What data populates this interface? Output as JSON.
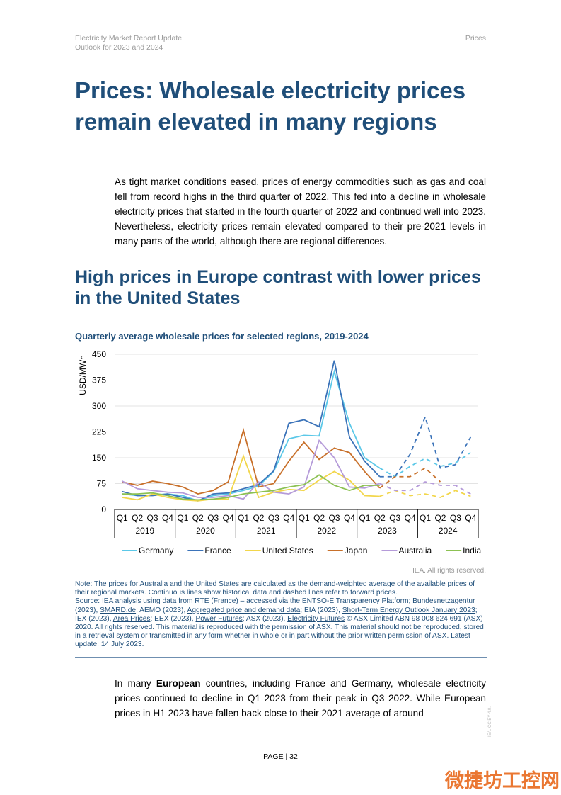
{
  "header": {
    "left": [
      "Electricity Market Report Update",
      "Outlook for 2023 and 2024"
    ],
    "right": "Prices"
  },
  "title": "Prices: Wholesale electricity prices remain elevated in many regions",
  "intro": "As tight market conditions eased, prices of energy commodities such as gas and coal fell from record highs in the third quarter of 2022. This fed into a decline in wholesale electricity prices that started in the fourth quarter of 2022 and continued well into 2023. Nevertheless, electricity prices remain elevated compared to their pre-2021 levels in many parts of the world, although there are regional differences.",
  "section_title": "High prices in Europe contrast with lower prices in the United States",
  "chart_data": {
    "type": "line",
    "title": "Quarterly average wholesale prices for selected regions, 2019-2024",
    "y_label": "USD/MWh",
    "categories": [
      "Q1",
      "Q2",
      "Q3",
      "Q4",
      "Q1",
      "Q2",
      "Q3",
      "Q4",
      "Q1",
      "Q2",
      "Q3",
      "Q4",
      "Q1",
      "Q2",
      "Q3",
      "Q4",
      "Q1",
      "Q2",
      "Q3",
      "Q4",
      "Q1",
      "Q2",
      "Q3",
      "Q4"
    ],
    "year_groups": [
      "2019",
      "2020",
      "2021",
      "2022",
      "2023",
      "2024"
    ],
    "ylim": [
      0,
      450
    ],
    "yticks": [
      0,
      75,
      150,
      225,
      300,
      375,
      450
    ],
    "grid": true,
    "legend": "bottom",
    "forecast_style": "dashed",
    "series": [
      {
        "name": "Germany",
        "color": "#5bc8e8",
        "values": [
          45,
          40,
          42,
          45,
          40,
          25,
          40,
          45,
          55,
          68,
          110,
          205,
          215,
          213,
          400,
          250,
          150,
          120,
          null,
          null,
          null,
          null,
          null,
          null
        ],
        "forecast_values": [
          null,
          null,
          null,
          null,
          null,
          null,
          null,
          null,
          null,
          null,
          null,
          null,
          null,
          null,
          null,
          null,
          null,
          120,
          95,
          125,
          148,
          125,
          135,
          165
        ]
      },
      {
        "name": "France",
        "color": "#3b73b9",
        "values": [
          52,
          40,
          40,
          45,
          35,
          25,
          45,
          48,
          60,
          72,
          112,
          250,
          260,
          240,
          432,
          210,
          140,
          95,
          null,
          null,
          null,
          null,
          null,
          null
        ],
        "forecast_values": [
          null,
          null,
          null,
          null,
          null,
          null,
          null,
          null,
          null,
          null,
          null,
          null,
          null,
          null,
          null,
          null,
          null,
          95,
          95,
          160,
          268,
          120,
          130,
          210
        ]
      },
      {
        "name": "United States",
        "color": "#f2d64b",
        "values": [
          35,
          28,
          45,
          35,
          28,
          25,
          30,
          30,
          155,
          35,
          50,
          58,
          55,
          85,
          110,
          85,
          40,
          38,
          null,
          null,
          null,
          null,
          null,
          null
        ],
        "forecast_values": [
          null,
          null,
          null,
          null,
          null,
          null,
          null,
          null,
          null,
          null,
          null,
          null,
          null,
          null,
          null,
          null,
          null,
          38,
          55,
          40,
          45,
          35,
          55,
          38
        ]
      },
      {
        "name": "Japan",
        "color": "#c8702a",
        "values": [
          80,
          70,
          82,
          75,
          65,
          45,
          55,
          80,
          230,
          65,
          75,
          140,
          195,
          145,
          178,
          165,
          110,
          62,
          null,
          null,
          null,
          null,
          null,
          null
        ],
        "forecast_values": [
          null,
          null,
          null,
          null,
          null,
          null,
          null,
          null,
          null,
          null,
          null,
          null,
          null,
          null,
          null,
          null,
          null,
          62,
          95,
          95,
          120,
          80,
          null,
          null
        ]
      },
      {
        "name": "Australia",
        "color": "#b59bd9",
        "values": [
          82,
          60,
          55,
          50,
          48,
          35,
          35,
          40,
          30,
          80,
          50,
          45,
          65,
          200,
          150,
          65,
          62,
          75,
          null,
          null,
          null,
          null,
          null,
          null
        ],
        "forecast_values": [
          null,
          null,
          null,
          null,
          null,
          null,
          null,
          null,
          null,
          null,
          null,
          null,
          null,
          null,
          null,
          null,
          null,
          75,
          55,
          55,
          80,
          70,
          70,
          45
        ]
      },
      {
        "name": "India",
        "color": "#8cc152",
        "values": [
          45,
          45,
          48,
          40,
          30,
          28,
          30,
          35,
          45,
          50,
          55,
          65,
          72,
          100,
          70,
          55,
          70,
          70,
          null,
          null,
          null,
          null,
          null,
          null
        ],
        "forecast_values": [
          null,
          null,
          null,
          null,
          null,
          null,
          null,
          null,
          null,
          null,
          null,
          null,
          null,
          null,
          null,
          null,
          null,
          null,
          null,
          null,
          null,
          null,
          null,
          null
        ]
      }
    ],
    "credit": "IEA. All rights reserved."
  },
  "note": "Note: The prices for Australia and the United States are calculated as the demand-weighted average of the available prices of their regional markets. Continuous lines show historical data and dashed lines refer to forward prices.",
  "source": [
    {
      "text": "Source: IEA analysis using data from RTE (France) – accessed via the ENTSO-E Transparency Platform; Bundesnetzagentur (2023), ",
      "link": false
    },
    {
      "text": "SMARD.de",
      "link": true
    },
    {
      "text": "; AEMO (2023), ",
      "link": false
    },
    {
      "text": "Aggregated price and demand data",
      "link": true
    },
    {
      "text": "; EIA (2023), ",
      "link": false
    },
    {
      "text": "Short-Term Energy Outlook January 2023",
      "link": true
    },
    {
      "text": "; IEX (2023), ",
      "link": false
    },
    {
      "text": "Area Prices",
      "link": true
    },
    {
      "text": "; EEX (2023), ",
      "link": false
    },
    {
      "text": "Power Futures",
      "link": true
    },
    {
      "text": "; ASX (2023), ",
      "link": false
    },
    {
      "text": "Electricity Futures",
      "link": true
    },
    {
      "text": " © ASX Limited ABN 98 008 624 691 (ASX) 2020. All rights reserved. This material is reproduced with the permission of ASX. This material should not be reproduced, stored in a retrieval system or transmitted in any form whether in whole or in part without the prior written permission of ASX. Latest update: 14 July 2023.",
      "link": false
    }
  ],
  "body_parts": [
    {
      "text": "In many ",
      "bold": false
    },
    {
      "text": "European",
      "bold": true
    },
    {
      "text": " countries, including France and Germany, wholesale electricity prices continued to decline in Q1 2023 from their peak in Q3 2022. While European prices in H1 2023 have fallen back close to their 2021 average of around",
      "bold": false
    }
  ],
  "footer": "PAGE | 32",
  "side_license": "IEA. CC BY 4.0.",
  "watermark": "微捷坊工控网"
}
